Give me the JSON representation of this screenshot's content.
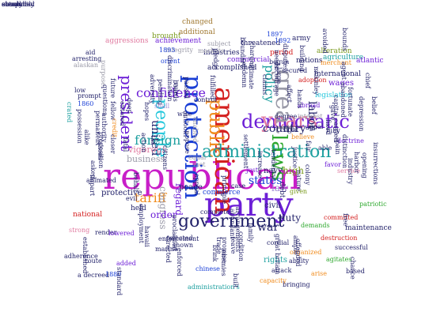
{
  "palette": {
    "magenta": "#c81ec8",
    "blue": "#1a3fd6",
    "purple": "#6c1ed6",
    "green": "#2ea82e",
    "red": "#d42020",
    "orange": "#f08c1e",
    "teal": "#1ea0a0",
    "navy": "#22226a",
    "brown": "#a07830",
    "olive": "#7a9a1e",
    "pink": "#e07aa0",
    "cyan": "#28c8dc",
    "grey": "#9a9aa8",
    "gold": "#d4a428",
    "lavender": "#a08ad4"
  },
  "words": [
    {
      "text": "republican",
      "color": "magenta"
    },
    {
      "text": "party",
      "color": "purple"
    },
    {
      "text": "american",
      "color": "red"
    },
    {
      "text": "protection",
      "color": "blue"
    },
    {
      "text": "government",
      "color": "navy"
    },
    {
      "text": "democratic",
      "color": "purple"
    },
    {
      "text": "public",
      "color": "orange"
    },
    {
      "text": "people",
      "color": "cyan"
    },
    {
      "text": "administration",
      "color": "teal"
    },
    {
      "text": "laws",
      "color": "green"
    },
    {
      "text": "years",
      "color": "pink"
    },
    {
      "text": "great",
      "color": "grey"
    },
    {
      "text": "president",
      "color": "purple"
    },
    {
      "text": "united",
      "color": "navy"
    },
    {
      "text": "labor",
      "color": "navy"
    },
    {
      "text": "confidence",
      "color": "purple"
    },
    {
      "text": "foreign",
      "color": "teal"
    },
    {
      "text": "tariff",
      "color": "orange"
    },
    {
      "text": "states",
      "color": "blue"
    },
    {
      "text": "country",
      "color": "navy"
    },
    {
      "text": "policy",
      "color": "teal"
    },
    {
      "text": "business",
      "color": "grey"
    },
    {
      "text": "vigorous",
      "color": "pink"
    },
    {
      "text": "law",
      "color": "lavender"
    },
    {
      "text": "high",
      "color": "olive"
    },
    {
      "text": "congress",
      "color": "grey"
    },
    {
      "text": "war",
      "color": "navy"
    },
    {
      "text": "regard",
      "color": "purple"
    },
    {
      "text": "duty",
      "color": "navy"
    },
    {
      "text": "order",
      "color": "purple"
    },
    {
      "text": "peace",
      "color": "navy"
    },
    {
      "text": "civil",
      "color": "navy"
    },
    {
      "text": "rights",
      "color": "teal"
    },
    {
      "text": "protective",
      "color": "navy"
    },
    {
      "text": "commerce",
      "color": "blue"
    },
    {
      "text": "navy",
      "color": "navy"
    },
    {
      "text": "debt",
      "color": "navy"
    },
    {
      "text": "industries",
      "color": "navy"
    },
    {
      "text": "commercial",
      "color": "purple"
    },
    {
      "text": "accomplished",
      "color": "navy"
    },
    {
      "text": "international",
      "color": "navy"
    },
    {
      "text": "legislation",
      "color": "cyan"
    },
    {
      "text": "wages",
      "color": "purple"
    },
    {
      "text": "nations",
      "color": "navy"
    },
    {
      "text": "agriculture",
      "color": "teal"
    },
    {
      "text": "alteration",
      "color": "olive"
    },
    {
      "text": "atlantic",
      "color": "purple"
    },
    {
      "text": "threatened",
      "color": "navy"
    },
    {
      "text": "brought",
      "color": "olive"
    },
    {
      "text": "changed",
      "color": "brown"
    },
    {
      "text": "additional",
      "color": "brown"
    },
    {
      "text": "achievement",
      "color": "purple"
    },
    {
      "text": "integrity",
      "color": "grey"
    },
    {
      "text": "aggressions",
      "color": "pink"
    },
    {
      "text": "markets",
      "color": "grey"
    },
    {
      "text": "subject",
      "color": "grey"
    },
    {
      "text": "period",
      "color": "red"
    },
    {
      "text": "begun",
      "color": "navy"
    },
    {
      "text": "army",
      "color": "navy"
    },
    {
      "text": "merchant",
      "color": "orange"
    },
    {
      "text": "secured",
      "color": "navy"
    },
    {
      "text": "adoption",
      "color": "red"
    },
    {
      "text": "arresting",
      "color": "navy"
    },
    {
      "text": "alaskan",
      "color": "grey"
    },
    {
      "text": "aid",
      "color": "navy"
    },
    {
      "text": "low",
      "color": "navy"
    },
    {
      "text": "prompt",
      "color": "navy"
    },
    {
      "text": "orient",
      "color": "blue"
    },
    {
      "text": "1893",
      "color": "blue"
    },
    {
      "text": "1860",
      "color": "blue"
    },
    {
      "text": "purpose",
      "color": "grey"
    },
    {
      "text": "crated",
      "color": "teal"
    },
    {
      "text": "credit",
      "color": "orange"
    },
    {
      "text": "shall",
      "color": "lavender"
    },
    {
      "text": "wise",
      "color": "navy"
    },
    {
      "text": "control",
      "color": "navy"
    },
    {
      "text": "enabled",
      "color": "grey"
    },
    {
      "text": "degree",
      "color": "navy"
    },
    {
      "text": "interest",
      "color": "grey"
    },
    {
      "text": "abroad",
      "color": "purple"
    },
    {
      "text": "believe",
      "color": "orange"
    },
    {
      "text": "equal",
      "color": "grey"
    },
    {
      "text": "met",
      "color": "grey"
    },
    {
      "text": "case",
      "color": "navy"
    },
    {
      "text": "just",
      "color": "purple"
    },
    {
      "text": "favor",
      "color": "purple"
    },
    {
      "text": "service",
      "color": "pink"
    },
    {
      "text": "able",
      "color": "navy"
    },
    {
      "text": "fully",
      "color": "navy"
    },
    {
      "text": "doctrine",
      "color": "purple"
    },
    {
      "text": "distinction",
      "color": "navy"
    },
    {
      "text": "given",
      "color": "olive"
    },
    {
      "text": "evil",
      "color": "navy"
    },
    {
      "text": "national",
      "color": "red"
    },
    {
      "text": "patriotic",
      "color": "green"
    },
    {
      "text": "committed",
      "color": "red"
    },
    {
      "text": "complete",
      "color": "navy"
    },
    {
      "text": "demands",
      "color": "green"
    },
    {
      "text": "maintenance",
      "color": "navy"
    },
    {
      "text": "destruction",
      "color": "red"
    },
    {
      "text": "held",
      "color": "navy"
    },
    {
      "text": "strong",
      "color": "pink"
    },
    {
      "text": "render",
      "color": "navy"
    },
    {
      "text": "lowered",
      "color": "purple"
    },
    {
      "text": "enforcement",
      "color": "navy"
    },
    {
      "text": "marine",
      "color": "navy"
    },
    {
      "text": "shown",
      "color": "navy"
    },
    {
      "text": "elected",
      "color": "navy"
    },
    {
      "text": "enforced",
      "color": "navy"
    },
    {
      "text": "organized",
      "color": "orange"
    },
    {
      "text": "successful",
      "color": "navy"
    },
    {
      "text": "ability",
      "color": "navy"
    },
    {
      "text": "arise",
      "color": "orange"
    },
    {
      "text": "agitates",
      "color": "green"
    },
    {
      "text": "chance",
      "color": "navy"
    },
    {
      "text": "based",
      "color": "navy"
    },
    {
      "text": "route",
      "color": "navy"
    },
    {
      "text": "added",
      "color": "purple"
    },
    {
      "text": "1880",
      "color": "blue"
    },
    {
      "text": "attack",
      "color": "navy"
    },
    {
      "text": "capacity",
      "color": "orange"
    },
    {
      "text": "bringing",
      "color": "navy"
    },
    {
      "text": "chinese",
      "color": "blue"
    },
    {
      "text": "administration's",
      "color": "teal"
    },
    {
      "text": "a decreed",
      "color": "navy"
    },
    {
      "text": "adherence",
      "color": "navy"
    },
    {
      "text": "cordial",
      "color": "navy"
    },
    {
      "text": "built",
      "color": "navy"
    },
    {
      "text": "enemies",
      "color": "navy"
    },
    {
      "text": "brink",
      "color": "navy"
    },
    {
      "text": "standard",
      "color": "navy"
    },
    {
      "text": "established",
      "color": "navy"
    },
    {
      "text": "settlement",
      "color": "navy"
    },
    {
      "text": "chief",
      "color": "navy"
    },
    {
      "text": "belief",
      "color": "navy"
    },
    {
      "text": "insurrections",
      "color": "navy"
    },
    {
      "text": "abandoned",
      "color": "navy"
    },
    {
      "text": "fortunate",
      "color": "navy"
    },
    {
      "text": "questions",
      "color": "navy"
    },
    {
      "text": "claims",
      "color": "navy"
    },
    {
      "text": "disputes",
      "color": "navy"
    },
    {
      "text": "harbor",
      "color": "navy"
    },
    {
      "text": "bounds",
      "color": "navy"
    },
    {
      "text": "building",
      "color": "navy"
    },
    {
      "text": "charges",
      "color": "navy"
    },
    {
      "text": "avoided",
      "color": "navy"
    },
    {
      "text": "boundary",
      "color": "navy"
    },
    {
      "text": "large",
      "color": "navy"
    },
    {
      "text": "mckinley",
      "color": "navy"
    },
    {
      "text": "citizens",
      "color": "navy"
    },
    {
      "text": "condition",
      "color": "navy"
    },
    {
      "text": "increase",
      "color": "navy"
    },
    {
      "text": "tendency",
      "color": "navy"
    },
    {
      "text": "alike",
      "color": "navy"
    },
    {
      "text": "aliens",
      "color": "navy"
    },
    {
      "text": "permanent",
      "color": "navy"
    },
    {
      "text": "opening",
      "color": "navy"
    },
    {
      "text": "outlook",
      "color": "navy"
    },
    {
      "text": "discrimination",
      "color": "navy"
    },
    {
      "text": "directed",
      "color": "navy"
    },
    {
      "text": "passed",
      "color": "navy"
    },
    {
      "text": "future",
      "color": "navy"
    },
    {
      "text": "fellow",
      "color": "navy"
    },
    {
      "text": "leave",
      "color": "navy"
    },
    {
      "text": "entered",
      "color": "navy"
    },
    {
      "text": "gave",
      "color": "navy"
    },
    {
      "text": "great britain",
      "color": "navy"
    },
    {
      "text": "authority",
      "color": "navy"
    },
    {
      "text": "possession",
      "color": "navy"
    },
    {
      "text": "affect",
      "color": "navy"
    },
    {
      "text": "1897",
      "color": "blue"
    },
    {
      "text": "1892",
      "color": "blue"
    },
    {
      "text": "goal",
      "color": "navy"
    },
    {
      "text": "spain",
      "color": "navy"
    },
    {
      "text": "hands",
      "color": "navy"
    },
    {
      "text": "ago",
      "color": "navy"
    },
    {
      "text": "capital",
      "color": "navy"
    },
    {
      "text": "carried",
      "color": "navy"
    },
    {
      "text": "sight",
      "color": "navy"
    },
    {
      "text": "fair",
      "color": "navy"
    },
    {
      "text": "fixed",
      "color": "navy"
    },
    {
      "text": "family",
      "color": "navy"
    },
    {
      "text": "abundant",
      "color": "navy"
    },
    {
      "text": "animated",
      "color": "navy"
    },
    {
      "text": "proposition",
      "color": "navy"
    },
    {
      "text": "arrangements",
      "color": "navy"
    },
    {
      "text": "promise",
      "color": "navy"
    },
    {
      "text": "employment",
      "color": "navy"
    },
    {
      "text": "pledge",
      "color": "navy"
    },
    {
      "text": "fulfilled",
      "color": "navy"
    },
    {
      "text": "rule",
      "color": "navy"
    },
    {
      "text": "pending",
      "color": "navy"
    },
    {
      "text": "colony",
      "color": "navy"
    },
    {
      "text": "trade",
      "color": "navy"
    },
    {
      "text": "asked",
      "color": "navy"
    },
    {
      "text": "tax",
      "color": "navy"
    },
    {
      "text": "deep",
      "color": "navy"
    },
    {
      "text": "hopes",
      "color": "navy"
    },
    {
      "text": "agent",
      "color": "navy"
    },
    {
      "text": "depression",
      "color": "navy"
    },
    {
      "text": "action",
      "color": "navy"
    },
    {
      "text": "free",
      "color": "navy"
    },
    {
      "text": "boards",
      "color": "navy"
    },
    {
      "text": "hawaii",
      "color": "navy"
    },
    {
      "text": "fatal",
      "color": "navy"
    },
    {
      "text": "impart",
      "color": "navy"
    },
    {
      "text": "closer",
      "color": "navy"
    },
    {
      "text": "oppose",
      "color": "navy"
    },
    {
      "text": "justice",
      "color": "navy"
    },
    {
      "text": "nature",
      "color": "navy"
    },
    {
      "text": "industry",
      "color": "navy"
    },
    {
      "text": "adversity",
      "color": "navy"
    },
    {
      "text": "appeal",
      "color": "navy"
    },
    {
      "text": "behalf",
      "color": "navy"
    },
    {
      "text": "ample",
      "color": "navy"
    },
    {
      "text": "principle",
      "color": "navy"
    },
    {
      "text": "offended",
      "color": "navy"
    },
    {
      "text": "proclaimed",
      "color": "navy"
    },
    {
      "text": "encourage",
      "color": "navy"
    },
    {
      "text": "needs",
      "color": "navy"
    },
    {
      "text": "ultimate",
      "color": "navy"
    },
    {
      "text": "condemn",
      "color": "navy"
    },
    {
      "text": "steady",
      "color": "navy"
    },
    {
      "text": "absolutely",
      "color": "navy"
    },
    {
      "text": "actual",
      "color": "navy"
    },
    {
      "text": "cause",
      "color": "navy"
    },
    {
      "text": "compelled",
      "color": "navy"
    },
    {
      "text": "common",
      "color": "navy"
    },
    {
      "text": "economic",
      "color": "navy"
    }
  ]
}
